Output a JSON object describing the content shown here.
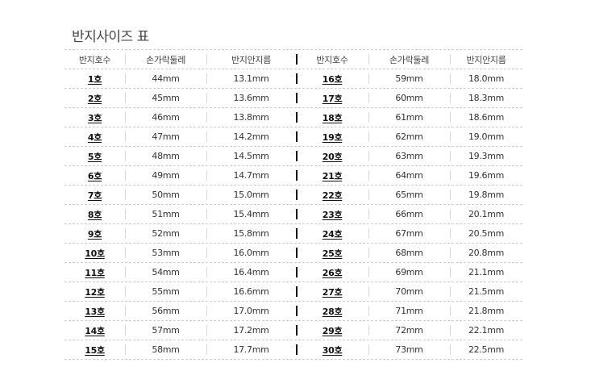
{
  "title": "반지사이즈 표",
  "headers": [
    "반지호수",
    "손가락둘레",
    "반지안지름",
    "반지호수",
    "손가락둘레",
    "반지안지름"
  ],
  "left_rows": [
    [
      "1호",
      "44mm",
      "13.1mm"
    ],
    [
      "2호",
      "45mm",
      "13.6mm"
    ],
    [
      "3호",
      "46mm",
      "13.8mm"
    ],
    [
      "4호",
      "47mm",
      "14.2mm"
    ],
    [
      "5호",
      "48mm",
      "14.5mm"
    ],
    [
      "6호",
      "49mm",
      "14.7mm"
    ],
    [
      "7호",
      "50mm",
      "15.0mm"
    ],
    [
      "8호",
      "51mm",
      "15.4mm"
    ],
    [
      "9호",
      "52mm",
      "15.8mm"
    ],
    [
      "10호",
      "53mm",
      "16.0mm"
    ],
    [
      "11호",
      "54mm",
      "16.4mm"
    ],
    [
      "12호",
      "55mm",
      "16.6mm"
    ],
    [
      "13호",
      "56mm",
      "17.0mm"
    ],
    [
      "14호",
      "57mm",
      "17.2mm"
    ],
    [
      "15호",
      "58mm",
      "17.7mm"
    ]
  ],
  "right_rows": [
    [
      "16호",
      "59mm",
      "18.0mm"
    ],
    [
      "17호",
      "60mm",
      "18.3mm"
    ],
    [
      "18호",
      "61mm",
      "18.6mm"
    ],
    [
      "19호",
      "62mm",
      "19.0mm"
    ],
    [
      "20호",
      "63mm",
      "19.3mm"
    ],
    [
      "21호",
      "64mm",
      "19.6mm"
    ],
    [
      "22호",
      "65mm",
      "19.8mm"
    ],
    [
      "23호",
      "66mm",
      "20.1mm"
    ],
    [
      "24호",
      "67mm",
      "20.5mm"
    ],
    [
      "25호",
      "68mm",
      "20.8mm"
    ],
    [
      "26호",
      "69mm",
      "21.1mm"
    ],
    [
      "27호",
      "70mm",
      "21.5mm"
    ],
    [
      "28호",
      "71mm",
      "21.8mm"
    ],
    [
      "29호",
      "72mm",
      "22.1mm"
    ],
    [
      "30호",
      "73mm",
      "22.5mm"
    ]
  ]
}
